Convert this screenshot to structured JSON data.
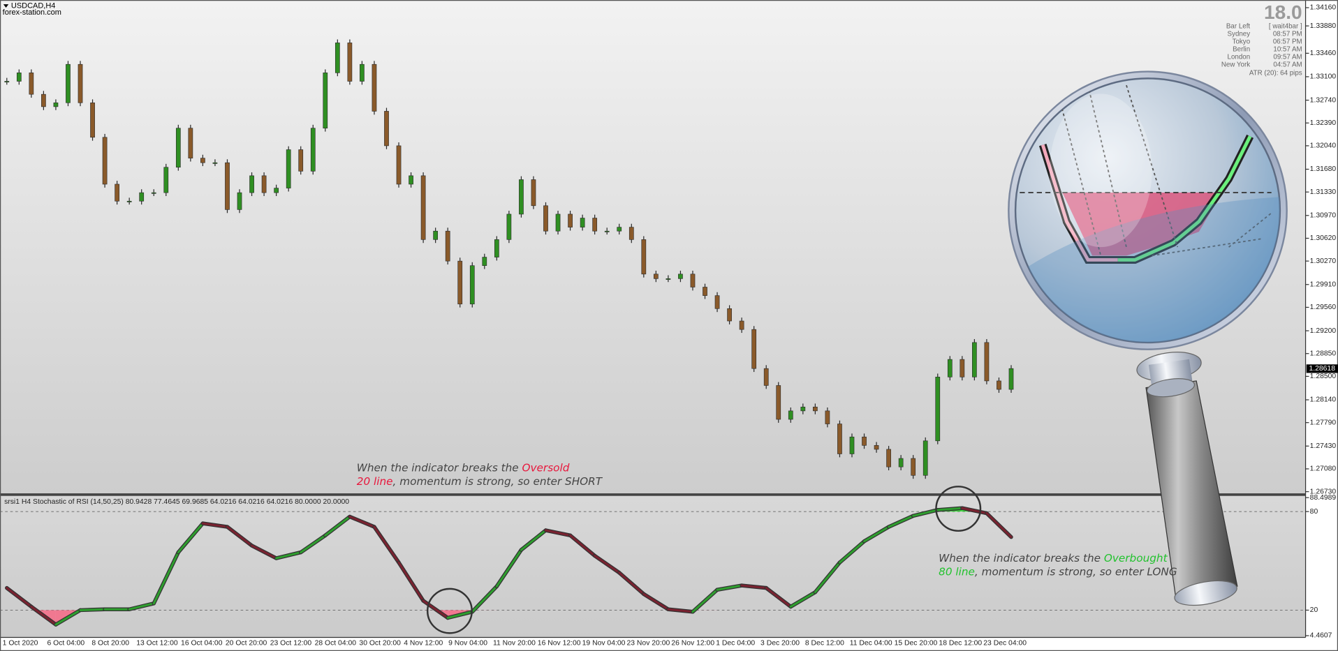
{
  "header": {
    "symbol": "USDCAD,H4",
    "site": "forex-station.com"
  },
  "info_panel": {
    "countdown": "18.0",
    "rows": [
      {
        "label": "Bar Left",
        "value": "[ wait4bar ]"
      },
      {
        "label": "Sydney",
        "value": "08:57 PM"
      },
      {
        "label": "Tokyo",
        "value": "06:57 PM"
      },
      {
        "label": "Berlin",
        "value": "10:57 AM"
      },
      {
        "label": "London",
        "value": "09:57 AM"
      },
      {
        "label": "New York",
        "value": "04:57 AM"
      }
    ],
    "atr": "ATR (20): 64 pips"
  },
  "time_axis": {
    "labels": [
      "1 Oct 2020",
      "6 Oct 04:00",
      "8 Oct 20:00",
      "13 Oct 12:00",
      "16 Oct 04:00",
      "20 Oct 20:00",
      "23 Oct 12:00",
      "28 Oct 04:00",
      "30 Oct 20:00",
      "4 Nov 12:00",
      "9 Nov 04:00",
      "11 Nov 20:00",
      "16 Nov 12:00",
      "19 Nov 04:00",
      "23 Nov 20:00",
      "26 Nov 12:00",
      "1 Dec 04:00",
      "3 Dec 20:00",
      "8 Dec 12:00",
      "11 Dec 04:00",
      "15 Dec 20:00",
      "18 Dec 12:00",
      "23 Dec 04:00"
    ]
  },
  "annotations": [
    {
      "lines": [
        [
          {
            "text": "When the indicator breaks the ",
            "color": "#444444"
          },
          {
            "text": "Oversold",
            "color": "#e8173c"
          }
        ],
        [
          {
            "text": "20 line",
            "color": "#e8173c"
          },
          {
            "text": ", momentum is strong, so enter SHORT",
            "color": "#444444"
          }
        ]
      ]
    },
    {
      "lines": [
        [
          {
            "text": "When the indicator breaks the ",
            "color": "#444444"
          },
          {
            "text": "Overbought",
            "color": "#22c22e"
          }
        ],
        [
          {
            "text": "80 line",
            "color": "#22c22e"
          },
          {
            "text": ", momentum is strong, so enter LONG",
            "color": "#444444"
          }
        ]
      ]
    }
  ],
  "chart_data": [
    {
      "type": "candlestick",
      "bull_color": "#2f8f22",
      "bear_color": "#8a5a2a",
      "wick_color": "#2a2a2a",
      "closes": [
        1.3303,
        1.3316,
        1.3283,
        1.3264,
        1.327,
        1.3329,
        1.327,
        1.3217,
        1.3145,
        1.3119,
        1.3119,
        1.3132,
        1.3132,
        1.3171,
        1.3231,
        1.3185,
        1.3178,
        1.3178,
        1.3106,
        1.3132,
        1.3158,
        1.3132,
        1.3139,
        1.3198,
        1.3165,
        1.3231,
        1.3316,
        1.3362,
        1.3303,
        1.3329,
        1.3257,
        1.3204,
        1.3145,
        1.3158,
        1.306,
        1.3073,
        1.3027,
        1.2961,
        1.302,
        1.3033,
        1.306,
        1.3099,
        1.3152,
        1.3112,
        1.3073,
        1.3099,
        1.3079,
        1.3093,
        1.3073,
        1.3073,
        1.3079,
        1.306,
        1.3007,
        1.3,
        1.3,
        1.3007,
        1.2987,
        1.2974,
        1.2954,
        1.2935,
        1.2922,
        1.2862,
        1.2836,
        1.2784,
        1.2797,
        1.2803,
        1.2797,
        1.2777,
        1.2731,
        1.2757,
        1.2744,
        1.2738,
        1.2711,
        1.2724,
        1.2698,
        1.2751,
        1.2849,
        1.2876,
        1.2849,
        1.2902,
        1.2843,
        1.283,
        1.2862
      ],
      "ylim": [
        1.2673,
        1.3416
      ],
      "yticks": [
        {
          "value": 1.3416,
          "label": "1.34160"
        },
        {
          "value": 1.3388,
          "label": "1.33880"
        },
        {
          "value": 1.3346,
          "label": "1.33460"
        },
        {
          "value": 1.331,
          "label": "1.33100"
        },
        {
          "value": 1.3274,
          "label": "1.32740"
        },
        {
          "value": 1.3239,
          "label": "1.32390"
        },
        {
          "value": 1.3204,
          "label": "1.32040"
        },
        {
          "value": 1.3168,
          "label": "1.31680"
        },
        {
          "value": 1.3133,
          "label": "1.31330"
        },
        {
          "value": 1.3097,
          "label": "1.30970"
        },
        {
          "value": 1.3062,
          "label": "1.30620"
        },
        {
          "value": 1.3027,
          "label": "1.30270"
        },
        {
          "value": 1.2991,
          "label": "1.29910"
        },
        {
          "value": 1.2956,
          "label": "1.29560"
        },
        {
          "value": 1.292,
          "label": "1.29200"
        },
        {
          "value": 1.2885,
          "label": "1.28850"
        },
        {
          "value": 1.285,
          "label": "1.28500"
        },
        {
          "value": 1.2814,
          "label": "1.28140"
        },
        {
          "value": 1.2779,
          "label": "1.27790"
        },
        {
          "value": 1.2743,
          "label": "1.27430"
        },
        {
          "value": 1.2708,
          "label": "1.27080"
        },
        {
          "value": 1.2673,
          "label": "1.26730"
        }
      ],
      "current_price": {
        "value": 1.28618,
        "label": "1.28618"
      }
    },
    {
      "type": "line",
      "title": "srsi1 H4 Stochastic of RSI (14,50,25) 80.9428 77.4645 69.9685 64.0216 64.0216 64.0216 80.0000 20.0000",
      "rising_color": "#2e9e2e",
      "falling_color": "#7a2230",
      "values": [
        33.5,
        22.1,
        11.2,
        20,
        20.5,
        20.5,
        24.1,
        55.2,
        72.8,
        70.7,
        59.3,
        51.6,
        55.2,
        65.5,
        76.9,
        70.7,
        49,
        25.7,
        15.3,
        19,
        34.5,
        56.7,
        68.6,
        65.5,
        53.1,
        42.8,
        29.8,
        20.5,
        19,
        32.4,
        35,
        33.5,
        22.1,
        30.9,
        49,
        61.9,
        70.7,
        77.4,
        81,
        82.1,
        79,
        64.5
      ],
      "ylim": [
        4.4607,
        88.4989
      ],
      "yticks": [
        88.4989,
        80,
        20,
        4.4607
      ],
      "levels": [
        {
          "value": 80,
          "fill": "#3ce03c"
        },
        {
          "value": 20,
          "fill": "#f07890"
        }
      ]
    }
  ]
}
